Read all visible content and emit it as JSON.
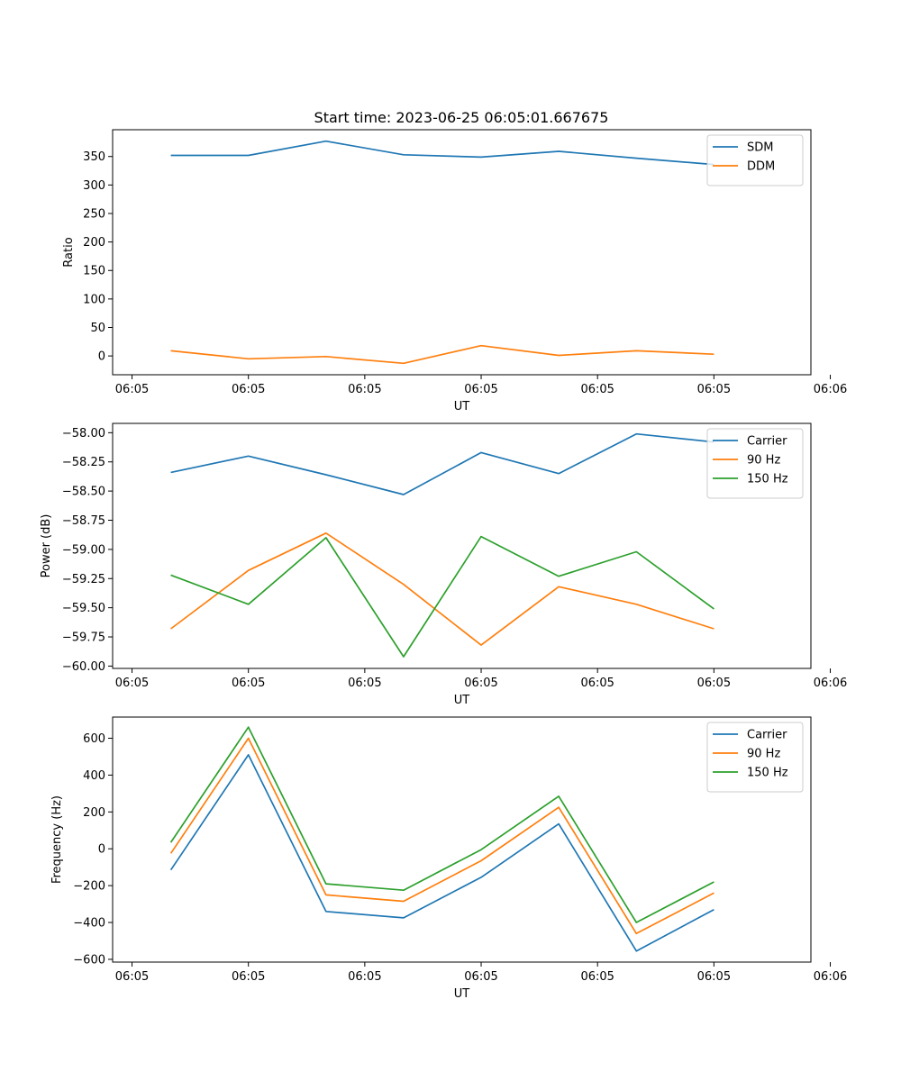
{
  "chart_data": [
    {
      "type": "line",
      "title": "Start time: 2023-06-25 06:05:01.667675",
      "xlabel": "UT",
      "ylabel": "Ratio",
      "x": [
        1,
        2,
        3,
        4,
        5,
        6,
        7,
        8
      ],
      "xlim": [
        0.25,
        9.25
      ],
      "x_ticks": [
        0.5,
        2,
        3.5,
        5,
        6.5,
        8,
        9.5
      ],
      "x_tick_labels": [
        "06:05",
        "06:05",
        "06:05",
        "06:05",
        "06:05",
        "06:05",
        "06:06"
      ],
      "ylim": [
        -33,
        397
      ],
      "y_ticks": [
        0,
        50,
        100,
        150,
        200,
        250,
        300,
        350
      ],
      "y_tick_labels": [
        "0",
        "50",
        "100",
        "150",
        "200",
        "250",
        "300",
        "350"
      ],
      "legend_position": "top-right",
      "grid": false,
      "series": [
        {
          "name": "SDM",
          "color": "#1f77b4",
          "values": [
            352,
            352,
            377,
            353,
            349,
            359,
            347,
            336
          ]
        },
        {
          "name": "DDM",
          "color": "#ff7f0e",
          "values": [
            9,
            -5,
            -1,
            -13,
            18,
            1,
            9,
            3
          ]
        }
      ]
    },
    {
      "type": "line",
      "title": "",
      "xlabel": "UT",
      "ylabel": "Power (dB)",
      "x": [
        1,
        2,
        3,
        4,
        5,
        6,
        7,
        8
      ],
      "xlim": [
        0.25,
        9.25
      ],
      "x_ticks": [
        0.5,
        2,
        3.5,
        5,
        6.5,
        8,
        9.5
      ],
      "x_tick_labels": [
        "06:05",
        "06:05",
        "06:05",
        "06:05",
        "06:05",
        "06:05",
        "06:06"
      ],
      "ylim": [
        -60.02,
        -57.92
      ],
      "y_ticks": [
        -60.0,
        -59.75,
        -59.5,
        -59.25,
        -59.0,
        -58.75,
        -58.5,
        -58.25,
        -58.0
      ],
      "y_tick_labels": [
        "−60.00",
        "−59.75",
        "−59.50",
        "−59.25",
        "−59.00",
        "−58.75",
        "−58.50",
        "−58.25",
        "−58.00"
      ],
      "legend_position": "top-right",
      "grid": false,
      "series": [
        {
          "name": "Carrier",
          "color": "#1f77b4",
          "values": [
            -58.34,
            -58.2,
            -58.36,
            -58.53,
            -58.17,
            -58.35,
            -58.01,
            -58.08
          ]
        },
        {
          "name": "90 Hz",
          "color": "#ff7f0e",
          "values": [
            -59.68,
            -59.18,
            -58.86,
            -59.3,
            -59.82,
            -59.32,
            -59.47,
            -59.68
          ]
        },
        {
          "name": "150 Hz",
          "color": "#2ca02c",
          "values": [
            -59.22,
            -59.47,
            -58.9,
            -59.92,
            -58.89,
            -59.23,
            -59.02,
            -59.51
          ]
        }
      ]
    },
    {
      "type": "line",
      "title": "",
      "xlabel": "UT",
      "ylabel": "Frequency (Hz)",
      "x": [
        1,
        2,
        3,
        4,
        5,
        6,
        7,
        8
      ],
      "xlim": [
        0.25,
        9.25
      ],
      "x_ticks": [
        0.5,
        2,
        3.5,
        5,
        6.5,
        8,
        9.5
      ],
      "x_tick_labels": [
        "06:05",
        "06:05",
        "06:05",
        "06:05",
        "06:05",
        "06:05",
        "06:06"
      ],
      "ylim": [
        -615,
        715
      ],
      "y_ticks": [
        -600,
        -400,
        -200,
        0,
        200,
        400,
        600
      ],
      "y_tick_labels": [
        "−600",
        "−400",
        "−200",
        "0",
        "200",
        "400",
        "600"
      ],
      "legend_position": "top-right",
      "grid": false,
      "series": [
        {
          "name": "Carrier",
          "color": "#1f77b4",
          "values": [
            -115,
            510,
            -340,
            -375,
            -155,
            135,
            -555,
            -330
          ]
        },
        {
          "name": "90 Hz",
          "color": "#ff7f0e",
          "values": [
            -25,
            600,
            -250,
            -285,
            -65,
            225,
            -460,
            -240
          ]
        },
        {
          "name": "150 Hz",
          "color": "#2ca02c",
          "values": [
            35,
            660,
            -190,
            -225,
            -5,
            285,
            -400,
            -180
          ]
        }
      ]
    }
  ]
}
